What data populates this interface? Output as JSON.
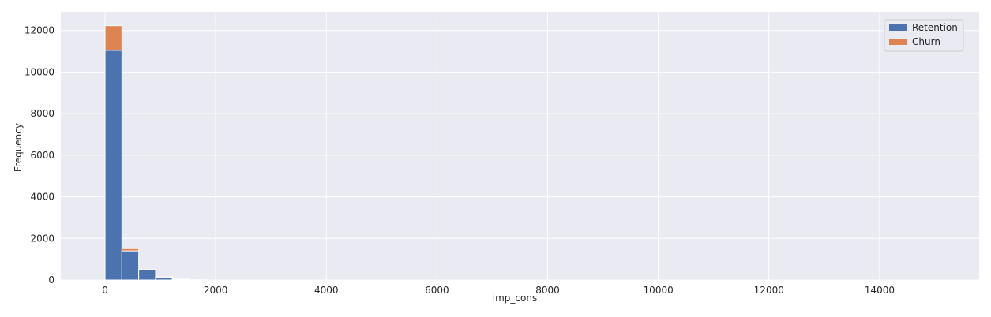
{
  "chart_data": {
    "type": "bar",
    "subtype": "stacked-histogram",
    "xlabel": "imp_cons",
    "ylabel": "Frequency",
    "xlim": [
      -800,
      15800
    ],
    "ylim": [
      0,
      12900
    ],
    "xticks": [
      0,
      2000,
      4000,
      6000,
      8000,
      10000,
      12000,
      14000
    ],
    "yticks": [
      0,
      2000,
      4000,
      6000,
      8000,
      10000,
      12000
    ],
    "grid": true,
    "legend_position": "top-right",
    "bin_edges": [
      0,
      304,
      608,
      912,
      1216,
      1520,
      1824
    ],
    "series": [
      {
        "name": "Retention",
        "color": "#4c72b0",
        "values": [
          11050,
          1400,
          480,
          140,
          40,
          10
        ]
      },
      {
        "name": "Churn",
        "color": "#dd8452",
        "values": [
          1180,
          110,
          20,
          5,
          2,
          0
        ]
      }
    ]
  }
}
